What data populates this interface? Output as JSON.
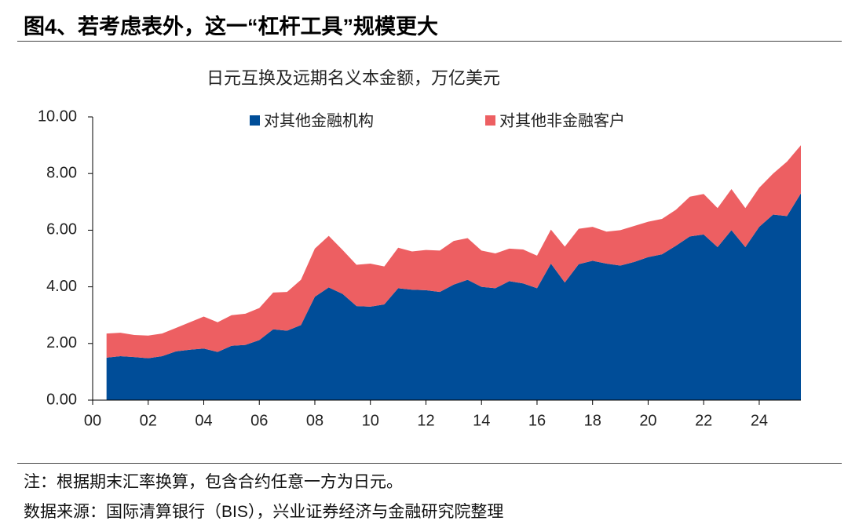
{
  "header": {
    "title": "图4、若考虑表外，这一“杠杆工具”规模更大"
  },
  "chart_data": {
    "type": "stacked-area",
    "title": "日元互换及远期名义本金额，万亿美元",
    "x": [
      0.5,
      1,
      1.5,
      2,
      2.5,
      3,
      3.5,
      4,
      4.5,
      5,
      5.5,
      6,
      6.5,
      7,
      7.5,
      8,
      8.5,
      9,
      9.5,
      10,
      10.5,
      11,
      11.5,
      12,
      12.5,
      13,
      13.5,
      14,
      14.5,
      15,
      15.5,
      16,
      16.5,
      17,
      17.5,
      18,
      18.5,
      19,
      19.5,
      20,
      20.5,
      21,
      21.5,
      22,
      22.5,
      23,
      23.5,
      24,
      24.5,
      25,
      25.5
    ],
    "series": [
      {
        "name": "对其他金融机构",
        "color": "#004d98",
        "values": [
          1.5,
          1.55,
          1.52,
          1.48,
          1.55,
          1.72,
          1.78,
          1.82,
          1.7,
          1.92,
          1.95,
          2.12,
          2.5,
          2.45,
          2.65,
          3.65,
          3.98,
          3.75,
          3.32,
          3.3,
          3.38,
          3.95,
          3.9,
          3.88,
          3.82,
          4.08,
          4.25,
          4.0,
          3.95,
          4.2,
          4.12,
          3.95,
          4.82,
          4.15,
          4.8,
          4.92,
          4.82,
          4.75,
          4.88,
          5.05,
          5.15,
          5.45,
          5.78,
          5.85,
          5.4,
          6.0,
          5.4,
          6.12,
          6.55,
          6.5,
          7.3
        ]
      },
      {
        "name": "对其他非金融客户",
        "color": "#ed5f62",
        "values": [
          0.85,
          0.83,
          0.78,
          0.8,
          0.8,
          0.83,
          0.97,
          1.13,
          1.05,
          1.08,
          1.1,
          1.13,
          1.3,
          1.37,
          1.6,
          1.7,
          1.82,
          1.55,
          1.46,
          1.52,
          1.34,
          1.43,
          1.35,
          1.42,
          1.46,
          1.54,
          1.47,
          1.28,
          1.23,
          1.15,
          1.2,
          1.15,
          1.2,
          1.27,
          1.25,
          1.2,
          1.13,
          1.25,
          1.27,
          1.25,
          1.25,
          1.27,
          1.4,
          1.43,
          1.38,
          1.45,
          1.38,
          1.38,
          1.45,
          1.92,
          1.7
        ]
      }
    ],
    "xlim": [
      0,
      25.5
    ],
    "xticks": [
      {
        "value": 0,
        "label": "00"
      },
      {
        "value": 2,
        "label": "02"
      },
      {
        "value": 4,
        "label": "04"
      },
      {
        "value": 6,
        "label": "06"
      },
      {
        "value": 8,
        "label": "08"
      },
      {
        "value": 10,
        "label": "10"
      },
      {
        "value": 12,
        "label": "12"
      },
      {
        "value": 14,
        "label": "14"
      },
      {
        "value": 16,
        "label": "16"
      },
      {
        "value": 18,
        "label": "18"
      },
      {
        "value": 20,
        "label": "20"
      },
      {
        "value": 22,
        "label": "22"
      },
      {
        "value": 24,
        "label": "24"
      }
    ],
    "ylim": [
      0,
      10
    ],
    "yticks": [
      {
        "value": 0,
        "label": "0.00"
      },
      {
        "value": 2,
        "label": "2.00"
      },
      {
        "value": 4,
        "label": "4.00"
      },
      {
        "value": 6,
        "label": "6.00"
      },
      {
        "value": 8,
        "label": "8.00"
      },
      {
        "value": 10,
        "label": "10.00"
      }
    ],
    "grid": false,
    "legend": "top"
  },
  "notes": [
    "注：根据期末汇率换算，包含合约任意一方为日元。",
    "数据来源：国际清算银行（BIS），兴业证券经济与金融研究院整理"
  ]
}
